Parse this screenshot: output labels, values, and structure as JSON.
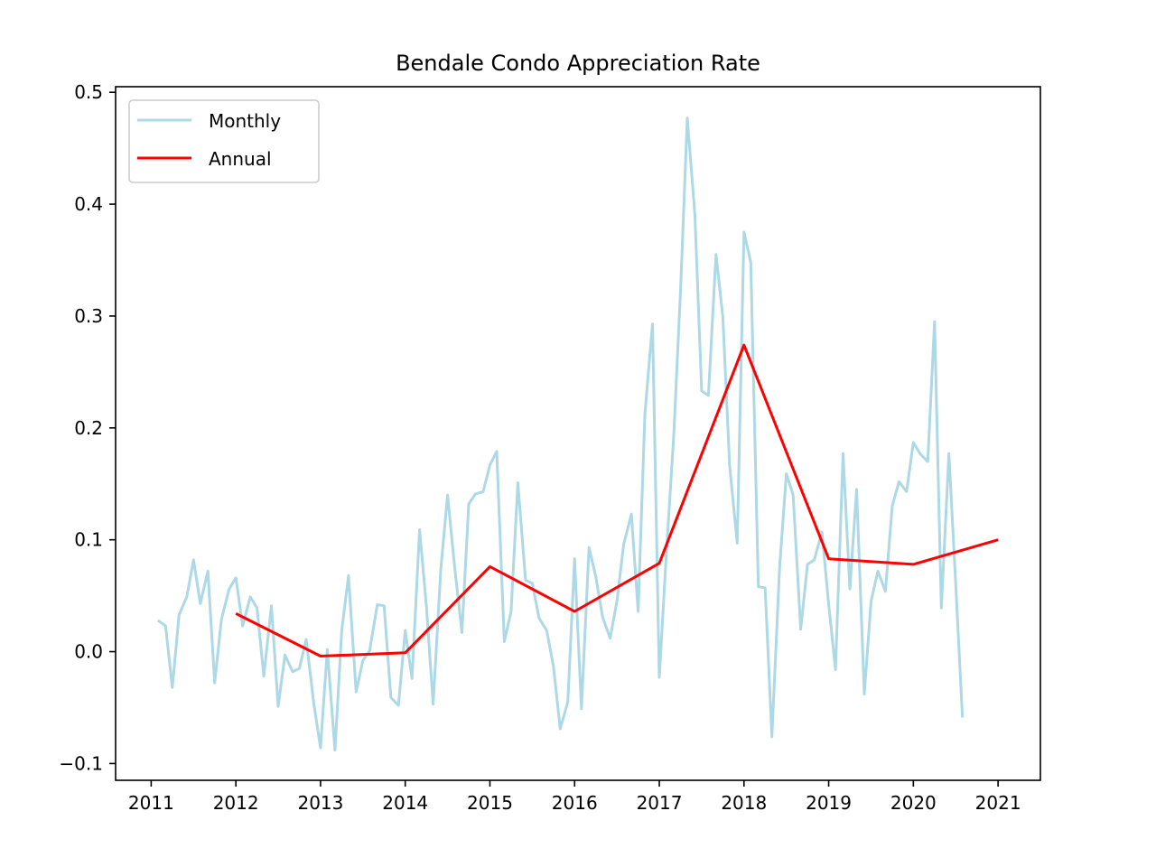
{
  "chart_data": {
    "type": "line",
    "title": "Bendale Condo Appreciation Rate",
    "xlabel": "",
    "ylabel": "",
    "xlim": [
      2010.58,
      2021.5
    ],
    "ylim": [
      -0.115,
      0.505
    ],
    "x_ticks": [
      {
        "value": 2011,
        "label": "2011"
      },
      {
        "value": 2012,
        "label": "2012"
      },
      {
        "value": 2013,
        "label": "2013"
      },
      {
        "value": 2014,
        "label": "2014"
      },
      {
        "value": 2015,
        "label": "2015"
      },
      {
        "value": 2016,
        "label": "2016"
      },
      {
        "value": 2017,
        "label": "2017"
      },
      {
        "value": 2018,
        "label": "2018"
      },
      {
        "value": 2019,
        "label": "2019"
      },
      {
        "value": 2020,
        "label": "2020"
      },
      {
        "value": 2021,
        "label": "2021"
      }
    ],
    "y_ticks": [
      {
        "value": -0.1,
        "label": "−0.1"
      },
      {
        "value": 0.0,
        "label": "0.0"
      },
      {
        "value": 0.1,
        "label": "0.1"
      },
      {
        "value": 0.2,
        "label": "0.2"
      },
      {
        "value": 0.3,
        "label": "0.3"
      },
      {
        "value": 0.4,
        "label": "0.4"
      },
      {
        "value": 0.5,
        "label": "0.5"
      }
    ],
    "grid": false,
    "legend": {
      "position": "top-left"
    },
    "series": [
      {
        "name": "Monthly",
        "color": "#add8e6",
        "points": [
          [
            2011.08,
            0.028
          ],
          [
            2011.17,
            0.023
          ],
          [
            2011.25,
            -0.032
          ],
          [
            2011.33,
            0.033
          ],
          [
            2011.42,
            0.049
          ],
          [
            2011.5,
            0.082
          ],
          [
            2011.58,
            0.043
          ],
          [
            2011.67,
            0.072
          ],
          [
            2011.75,
            -0.028
          ],
          [
            2011.83,
            0.029
          ],
          [
            2011.92,
            0.056
          ],
          [
            2012.0,
            0.066
          ],
          [
            2012.08,
            0.023
          ],
          [
            2012.17,
            0.049
          ],
          [
            2012.25,
            0.039
          ],
          [
            2012.33,
            -0.022
          ],
          [
            2012.42,
            0.041
          ],
          [
            2012.5,
            -0.049
          ],
          [
            2012.58,
            -0.003
          ],
          [
            2012.67,
            -0.018
          ],
          [
            2012.75,
            -0.015
          ],
          [
            2012.83,
            0.011
          ],
          [
            2012.92,
            -0.046
          ],
          [
            2013.0,
            -0.086
          ],
          [
            2013.08,
            0.002
          ],
          [
            2013.17,
            -0.088
          ],
          [
            2013.25,
            0.019
          ],
          [
            2013.33,
            0.068
          ],
          [
            2013.42,
            -0.036
          ],
          [
            2013.5,
            -0.008
          ],
          [
            2013.58,
            0.001
          ],
          [
            2013.67,
            0.042
          ],
          [
            2013.75,
            0.041
          ],
          [
            2013.83,
            -0.041
          ],
          [
            2013.92,
            -0.048
          ],
          [
            2014.0,
            0.019
          ],
          [
            2014.08,
            -0.024
          ],
          [
            2014.17,
            0.109
          ],
          [
            2014.25,
            0.041
          ],
          [
            2014.33,
            -0.047
          ],
          [
            2014.42,
            0.074
          ],
          [
            2014.5,
            0.14
          ],
          [
            2014.58,
            0.078
          ],
          [
            2014.67,
            0.017
          ],
          [
            2014.75,
            0.132
          ],
          [
            2014.83,
            0.141
          ],
          [
            2014.92,
            0.143
          ],
          [
            2015.0,
            0.167
          ],
          [
            2015.08,
            0.179
          ],
          [
            2015.17,
            0.009
          ],
          [
            2015.25,
            0.036
          ],
          [
            2015.33,
            0.151
          ],
          [
            2015.42,
            0.064
          ],
          [
            2015.5,
            0.061
          ],
          [
            2015.58,
            0.03
          ],
          [
            2015.67,
            0.019
          ],
          [
            2015.75,
            -0.013
          ],
          [
            2015.83,
            -0.069
          ],
          [
            2015.92,
            -0.045
          ],
          [
            2016.0,
            0.083
          ],
          [
            2016.08,
            -0.051
          ],
          [
            2016.17,
            0.093
          ],
          [
            2016.25,
            0.067
          ],
          [
            2016.33,
            0.031
          ],
          [
            2016.42,
            0.012
          ],
          [
            2016.5,
            0.045
          ],
          [
            2016.58,
            0.096
          ],
          [
            2016.67,
            0.123
          ],
          [
            2016.75,
            0.036
          ],
          [
            2016.83,
            0.213
          ],
          [
            2016.92,
            0.293
          ],
          [
            2017.0,
            -0.023
          ],
          [
            2017.08,
            0.083
          ],
          [
            2017.17,
            0.193
          ],
          [
            2017.25,
            0.322
          ],
          [
            2017.33,
            0.477
          ],
          [
            2017.42,
            0.391
          ],
          [
            2017.5,
            0.233
          ],
          [
            2017.58,
            0.229
          ],
          [
            2017.67,
            0.355
          ],
          [
            2017.75,
            0.299
          ],
          [
            2017.83,
            0.166
          ],
          [
            2017.92,
            0.097
          ],
          [
            2018.0,
            0.375
          ],
          [
            2018.08,
            0.348
          ],
          [
            2018.17,
            0.058
          ],
          [
            2018.25,
            0.057
          ],
          [
            2018.33,
            -0.076
          ],
          [
            2018.42,
            0.075
          ],
          [
            2018.5,
            0.159
          ],
          [
            2018.58,
            0.14
          ],
          [
            2018.67,
            0.02
          ],
          [
            2018.75,
            0.078
          ],
          [
            2018.83,
            0.082
          ],
          [
            2018.92,
            0.107
          ],
          [
            2019.0,
            0.042
          ],
          [
            2019.08,
            -0.016
          ],
          [
            2019.17,
            0.177
          ],
          [
            2019.25,
            0.056
          ],
          [
            2019.33,
            0.145
          ],
          [
            2019.42,
            -0.038
          ],
          [
            2019.5,
            0.045
          ],
          [
            2019.58,
            0.072
          ],
          [
            2019.67,
            0.054
          ],
          [
            2019.75,
            0.13
          ],
          [
            2019.83,
            0.152
          ],
          [
            2019.92,
            0.143
          ],
          [
            2020.0,
            0.187
          ],
          [
            2020.08,
            0.177
          ],
          [
            2020.17,
            0.17
          ],
          [
            2020.25,
            0.295
          ],
          [
            2020.33,
            0.039
          ],
          [
            2020.42,
            0.177
          ],
          [
            2020.5,
            0.061
          ],
          [
            2020.58,
            -0.059
          ]
        ]
      },
      {
        "name": "Annual",
        "color": "#ff0000",
        "points": [
          [
            2012,
            0.034
          ],
          [
            2013,
            -0.004
          ],
          [
            2014,
            -0.001
          ],
          [
            2015,
            0.076
          ],
          [
            2016,
            0.036
          ],
          [
            2017,
            0.079
          ],
          [
            2018,
            0.274
          ],
          [
            2019,
            0.083
          ],
          [
            2020,
            0.078
          ],
          [
            2021,
            0.1
          ]
        ]
      }
    ]
  }
}
